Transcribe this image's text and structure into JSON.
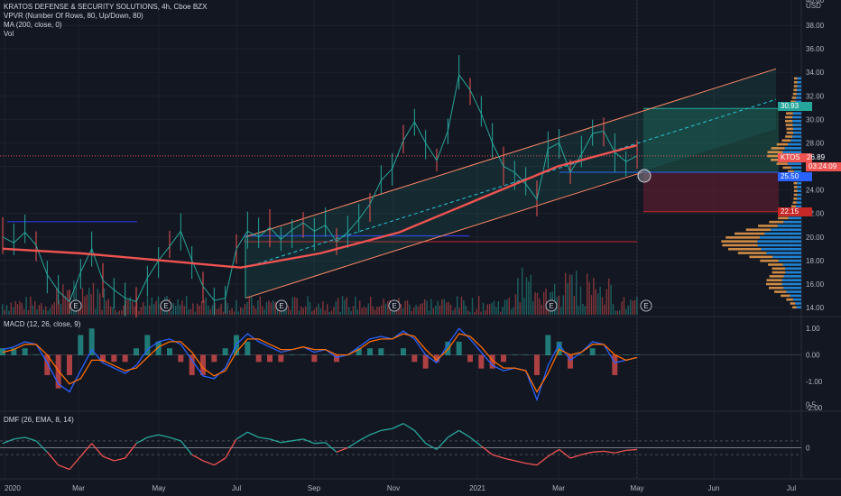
{
  "header": {
    "symbol_line": "KRATOS DEFENSE & SECURITY SOLUTIONS, 4h, Cboe BZX",
    "indicator_1": "VPVR (Number Of Rows, 80, Up/Down, 80)",
    "indicator_2": "MA (200, close, 0)",
    "indicator_3": "Vol",
    "macd_title": "MACD (12, 26, close, 9)",
    "dmf_title": "DMF (26, EMA, 8, 14)"
  },
  "price_axis": {
    "currency": "USD",
    "top_label": "40.00",
    "ticks": [
      "38.00",
      "36.00",
      "34.00",
      "32.00",
      "30.00",
      "28.00",
      "26.00",
      "24.00",
      "22.00",
      "20.00",
      "18.00",
      "16.00",
      "14.00"
    ]
  },
  "price_tags": {
    "target": "30.93",
    "symbol": "KTOS",
    "last": "26.89",
    "countdown": "03:24:09",
    "entry": "25.50",
    "stop": "22.15"
  },
  "macd_axis": {
    "ticks": [
      "1.00",
      "0.00",
      "-1.00",
      "-2.00"
    ]
  },
  "dmf_axis": {
    "ticks": [
      "0.5",
      "0"
    ]
  },
  "time_axis": {
    "labels": [
      "2020",
      "Mar",
      "May",
      "Jul",
      "Sep",
      "Nov",
      "2021",
      "Mar",
      "May",
      "Jun",
      "Jul"
    ]
  },
  "earnings_marker": "E",
  "colors": {
    "background": "#131722",
    "price_line": "#26a69a",
    "ma_line": "#ef5350",
    "channel": "#ff8a65",
    "volume_profile_up": "#2196f3",
    "volume_profile_down": "#f0a04b",
    "target_zone": "#1e5a4a",
    "stop_zone": "#5a1e2e",
    "macd_line": "#2962ff",
    "signal_line": "#ff6d00",
    "dmf_up": "#26a69a",
    "dmf_down": "#ef5350"
  },
  "chart_data": [
    {
      "type": "line",
      "title": "KRATOS DEFENSE & SECURITY SOLUTIONS, 4h, Cboe BZX",
      "x": [
        "2020",
        "Mar",
        "May",
        "Jul",
        "Sep",
        "Nov",
        "2021",
        "Mar",
        "May"
      ],
      "series": [
        {
          "name": "MA (200, close, 0)",
          "values": [
            19.0,
            18.6,
            18.0,
            17.4,
            18.6,
            20.4,
            23.2,
            26.0,
            27.8
          ]
        }
      ],
      "price_path": [
        20.0,
        19.5,
        20.4,
        19.3,
        16.8,
        15.4,
        14.5,
        17.0,
        19.0,
        16.3,
        15.5,
        14.8,
        14.5,
        16.5,
        18.0,
        19.2,
        20.5,
        18.0,
        15.8,
        14.6,
        14.8,
        19.0,
        20.5,
        20.0,
        20.8,
        19.8,
        20.6,
        21.2,
        20.5,
        21.0,
        19.6,
        20.4,
        21.5,
        22.8,
        24.8,
        25.8,
        28.2,
        29.8,
        28.0,
        26.5,
        29.0,
        33.8,
        32.5,
        30.5,
        28.0,
        26.0,
        25.5,
        24.5,
        23.2,
        27.5,
        28.0,
        25.5,
        27.0,
        28.8,
        29.0,
        27.2,
        26.4,
        26.9
      ],
      "ylim": [
        13.5,
        40.0
      ],
      "channel_lines": [
        {
          "name": "upper",
          "from": [
            "Jul",
            20.0
          ],
          "to": [
            "Jun",
            34.3
          ]
        },
        {
          "name": "lower",
          "from": [
            "Jul",
            14.8
          ],
          "to": [
            "May",
            25.5
          ]
        }
      ],
      "levels": {
        "target": 30.93,
        "last": 26.89,
        "entry": 25.5,
        "stop": 22.15
      },
      "earnings_at": [
        "Mar",
        "May",
        "Jul",
        "Nov",
        "Mar",
        "May"
      ]
    },
    {
      "type": "line",
      "title": "MACD (12, 26, close, 9)",
      "x_count": 58,
      "series": [
        {
          "name": "MACD",
          "values": [
            0.2,
            0.3,
            0.5,
            0.4,
            -0.3,
            -1.1,
            -1.4,
            -0.6,
            0.2,
            -0.3,
            -0.5,
            -0.7,
            -0.4,
            0.2,
            0.5,
            0.6,
            0.4,
            -0.2,
            -0.8,
            -0.9,
            -0.5,
            0.4,
            0.8,
            0.5,
            0.3,
            0.1,
            0.2,
            0.3,
            0.1,
            0.2,
            -0.1,
            0.0,
            0.3,
            0.6,
            0.7,
            0.6,
            0.9,
            0.6,
            0.0,
            -0.3,
            0.4,
            1.0,
            0.6,
            0.1,
            -0.4,
            -0.6,
            -0.5,
            -0.6,
            -1.7,
            -0.4,
            0.4,
            -0.2,
            0.1,
            0.5,
            0.4,
            -0.3,
            -0.2,
            -0.1
          ]
        },
        {
          "name": "Signal",
          "values": [
            0.1,
            0.2,
            0.4,
            0.4,
            0.0,
            -0.6,
            -1.1,
            -0.9,
            -0.2,
            -0.2,
            -0.4,
            -0.6,
            -0.5,
            -0.1,
            0.3,
            0.5,
            0.5,
            0.1,
            -0.5,
            -0.8,
            -0.6,
            0.1,
            0.6,
            0.6,
            0.4,
            0.2,
            0.2,
            0.3,
            0.2,
            0.2,
            0.0,
            0.0,
            0.2,
            0.5,
            0.6,
            0.6,
            0.8,
            0.7,
            0.2,
            -0.2,
            0.2,
            0.8,
            0.7,
            0.3,
            -0.2,
            -0.5,
            -0.5,
            -0.6,
            -1.4,
            -0.7,
            0.2,
            0.0,
            0.1,
            0.4,
            0.4,
            0.0,
            -0.2,
            -0.1
          ]
        }
      ],
      "ylim": [
        -2.0,
        1.3
      ]
    },
    {
      "type": "line",
      "title": "DMF (26, EMA, 8, 14)",
      "x_count": 58,
      "series": [
        {
          "name": "DMF",
          "values": [
            0.05,
            0.1,
            0.12,
            0.08,
            -0.05,
            -0.2,
            -0.25,
            -0.1,
            0.05,
            -0.1,
            -0.15,
            -0.12,
            0.05,
            0.12,
            0.15,
            0.12,
            0.08,
            -0.08,
            -0.15,
            -0.2,
            -0.12,
            0.1,
            0.18,
            0.12,
            0.1,
            0.06,
            0.08,
            0.1,
            0.05,
            0.06,
            -0.05,
            0.0,
            0.08,
            0.15,
            0.2,
            0.22,
            0.28,
            0.2,
            0.05,
            -0.02,
            0.12,
            0.2,
            0.12,
            0.02,
            -0.08,
            -0.12,
            -0.15,
            -0.18,
            -0.2,
            -0.1,
            -0.02,
            -0.12,
            -0.08,
            -0.05,
            -0.04,
            -0.06,
            -0.03,
            -0.02
          ]
        }
      ],
      "ylim": [
        -0.35,
        0.5
      ]
    }
  ]
}
